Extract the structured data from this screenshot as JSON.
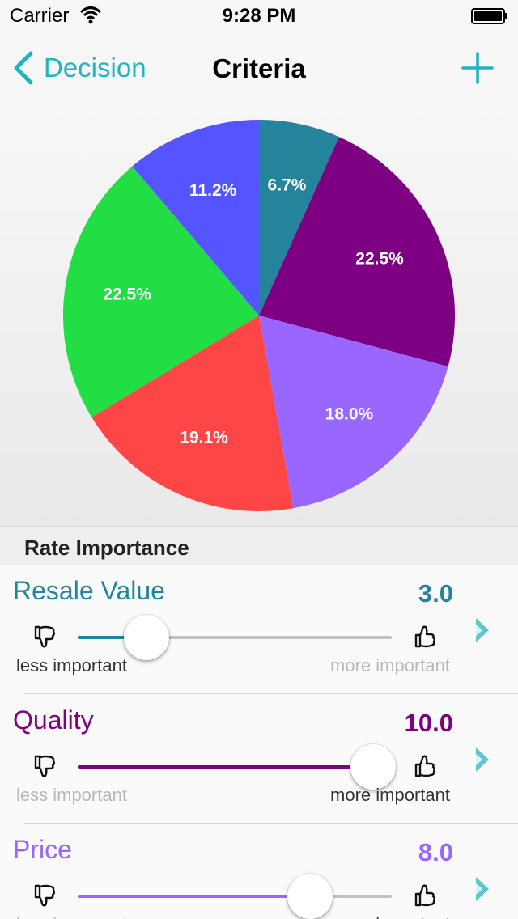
{
  "status_bar": {
    "carrier": "Carrier",
    "time": "9:28 PM"
  },
  "nav": {
    "back_label": "Decision",
    "title": "Criteria",
    "accent_color": "#1fb4bf"
  },
  "chart_data": {
    "type": "pie",
    "slices": [
      {
        "value": 6.7,
        "label": "6.7%",
        "color": "#24849b"
      },
      {
        "value": 22.5,
        "label": "22.5%",
        "color": "#7d0083"
      },
      {
        "value": 18.0,
        "label": "18.0%",
        "color": "#9966ff"
      },
      {
        "value": 19.1,
        "label": "19.1%",
        "color": "#ff4646"
      },
      {
        "value": 22.5,
        "label": "22.5%",
        "color": "#22dd44"
      },
      {
        "value": 11.2,
        "label": "11.2%",
        "color": "#5555ff"
      }
    ]
  },
  "section": {
    "header": "Rate Importance"
  },
  "criteria": [
    {
      "name": "Resale Value",
      "score": "3.0",
      "fraction": 0.22,
      "color": "#24849b",
      "less_label": "less important",
      "more_label": "more important",
      "emphasis": "less"
    },
    {
      "name": "Quality",
      "score": "10.0",
      "fraction": 0.94,
      "color": "#7d0083",
      "less_label": "less important",
      "more_label": "more important",
      "emphasis": "more"
    },
    {
      "name": "Price",
      "score": "8.0",
      "fraction": 0.74,
      "color": "#9966ff",
      "less_label": "less important",
      "more_label": "more important",
      "emphasis": "more"
    }
  ]
}
